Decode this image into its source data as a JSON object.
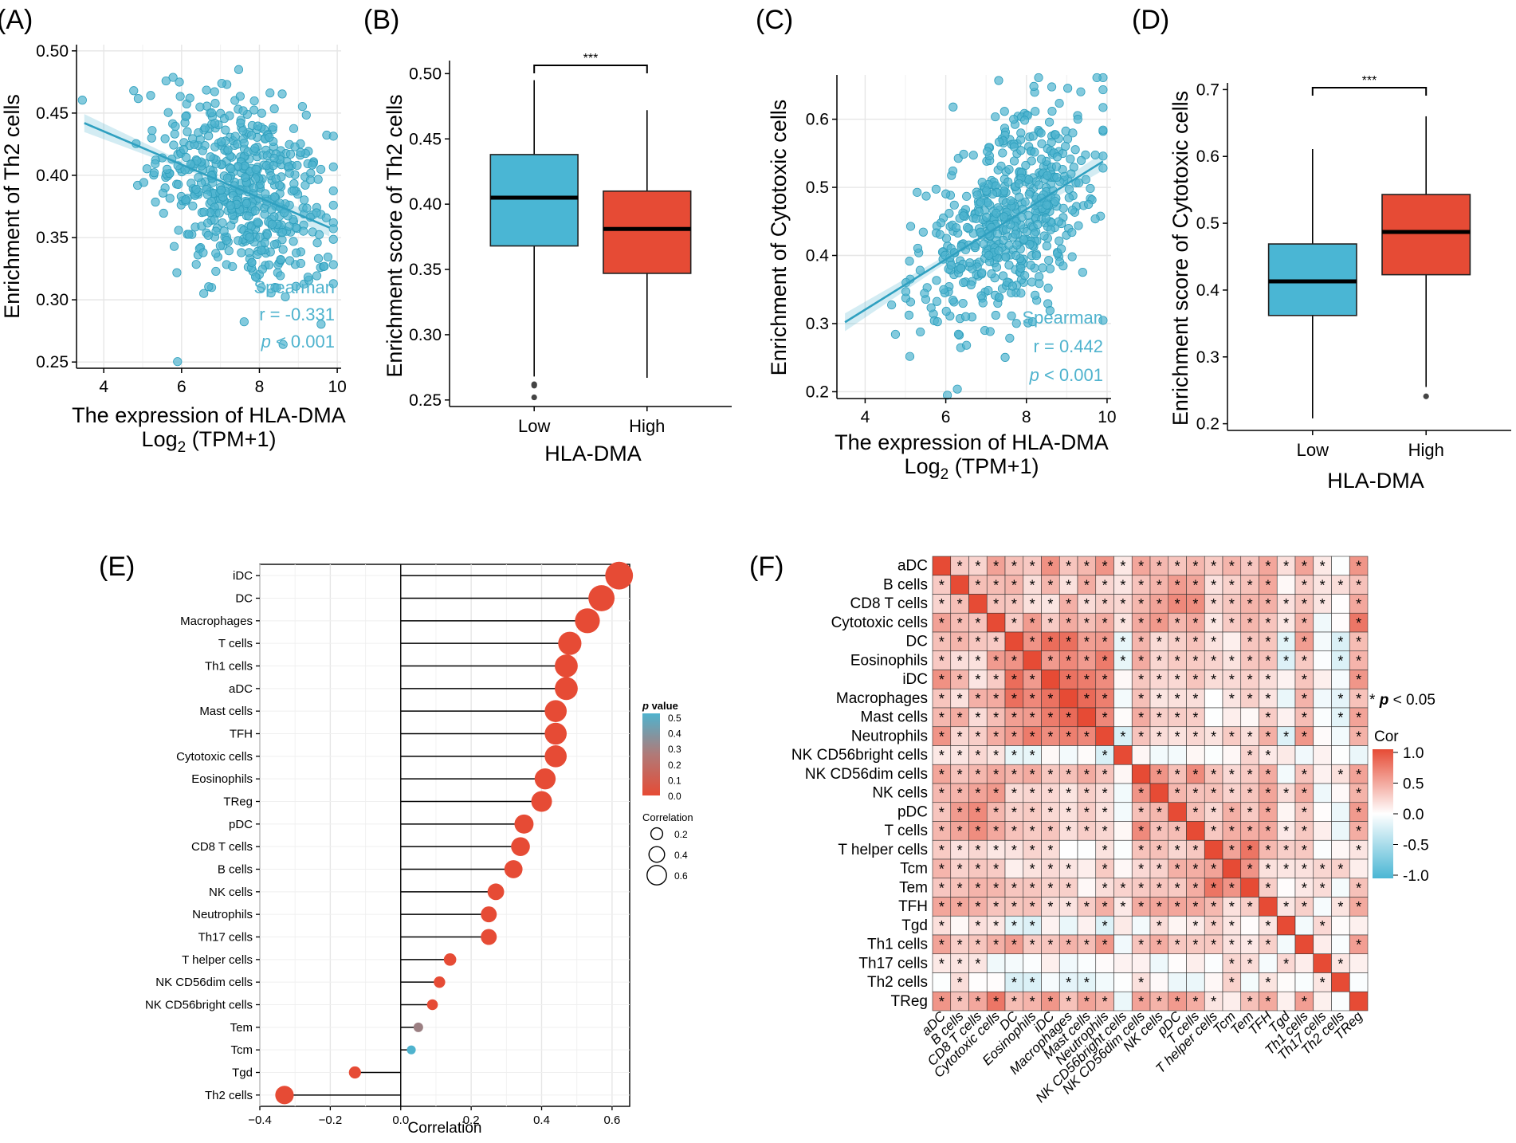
{
  "colors": {
    "teal": "#4fb3ce",
    "red": "#e64b35",
    "box_low": "#4ab6d4",
    "box_high": "#e64b35",
    "grid": "#e6e6e6",
    "label": "#000000"
  },
  "panel_labels": {
    "a": "(A)",
    "b": "(B)",
    "c": "(C)",
    "d": "(D)",
    "e": "(E)",
    "f": "(F)"
  },
  "chart_data": [
    {
      "id": "A",
      "type": "scatter",
      "title": "",
      "xlabel": "The expression of HLA-DMA",
      "xlabel2_base": "Log",
      "xlabel2_sub": "2",
      "xlabel2_rest": " (TPM+1)",
      "ylabel": "Enrichment of Th2 cells",
      "xlim": [
        3.3,
        10.1
      ],
      "ylim": [
        0.245,
        0.505
      ],
      "xticks": [
        4,
        6,
        8,
        10
      ],
      "yticks": [
        0.25,
        0.3,
        0.35,
        0.4,
        0.45,
        0.5
      ],
      "ytick_labels": [
        "0.25",
        "0.30",
        "0.35",
        "0.40",
        "0.45",
        "0.50"
      ],
      "fit": {
        "x0": 3.5,
        "y0": 0.442,
        "x1": 9.8,
        "y1": 0.358
      },
      "n_points": 560,
      "cloud": {
        "x_mean": 7.6,
        "x_sd": 1.1,
        "slope": -0.0134,
        "intercept": 0.4887,
        "noise_sd": 0.038
      },
      "annotation": {
        "method": "Spearman",
        "r": "r = -0.331",
        "p_italic": "p",
        "p_rest": " < 0.001"
      }
    },
    {
      "id": "B",
      "type": "box",
      "xlabel": "HLA-DMA",
      "ylabel": "Enrichment score of Th2 cells",
      "categories": [
        "Low",
        "High"
      ],
      "ylim": [
        0.245,
        0.51
      ],
      "yticks": [
        0.25,
        0.3,
        0.35,
        0.4,
        0.45,
        0.5
      ],
      "ytick_labels": [
        "0.25",
        "0.30",
        "0.35",
        "0.40",
        "0.45",
        "0.50"
      ],
      "boxes": [
        {
          "category": "Low",
          "min": 0.268,
          "q1": 0.368,
          "median": 0.405,
          "q3": 0.438,
          "max": 0.495,
          "outliers": [
            0.262,
            0.261,
            0.252
          ]
        },
        {
          "category": "High",
          "min": 0.267,
          "q1": 0.347,
          "median": 0.381,
          "q3": 0.41,
          "max": 0.472,
          "outliers": []
        }
      ],
      "significance": "***"
    },
    {
      "id": "C",
      "type": "scatter",
      "xlabel": "The expression of HLA-DMA",
      "xlabel2_base": "Log",
      "xlabel2_sub": "2",
      "xlabel2_rest": " (TPM+1)",
      "ylabel": "Enrichment of Cytotoxic cells",
      "xlim": [
        3.3,
        10.1
      ],
      "ylim": [
        0.19,
        0.665
      ],
      "xticks": [
        4,
        6,
        8,
        10
      ],
      "yticks": [
        0.2,
        0.3,
        0.4,
        0.5,
        0.6
      ],
      "ytick_labels": [
        "0.2",
        "0.3",
        "0.4",
        "0.5",
        "0.6"
      ],
      "fit": {
        "x0": 3.5,
        "y0": 0.302,
        "x1": 9.9,
        "y1": 0.538
      },
      "n_points": 560,
      "cloud": {
        "x_mean": 7.6,
        "x_sd": 1.1,
        "slope": 0.0369,
        "intercept": 0.1729,
        "noise_sd": 0.07
      },
      "annotation": {
        "method": "Spearman",
        "r": "r = 0.442",
        "p_italic": "p",
        "p_rest": " < 0.001"
      }
    },
    {
      "id": "D",
      "type": "box",
      "xlabel": "HLA-DMA",
      "ylabel": "Enrichment score of Cytotoxic cells",
      "categories": [
        "Low",
        "High"
      ],
      "ylim": [
        0.19,
        0.71
      ],
      "yticks": [
        0.2,
        0.3,
        0.4,
        0.5,
        0.6,
        0.7
      ],
      "ytick_labels": [
        "0.2",
        "0.3",
        "0.4",
        "0.5",
        "0.6",
        "0.7"
      ],
      "boxes": [
        {
          "category": "Low",
          "min": 0.208,
          "q1": 0.362,
          "median": 0.413,
          "q3": 0.469,
          "max": 0.611,
          "outliers": []
        },
        {
          "category": "High",
          "min": 0.255,
          "q1": 0.423,
          "median": 0.487,
          "q3": 0.543,
          "max": 0.66,
          "outliers": [
            0.241
          ]
        }
      ],
      "significance": "***"
    },
    {
      "id": "E",
      "type": "lollipop",
      "xlabel": "Correlation",
      "xlim": [
        -0.4,
        0.65
      ],
      "xticks": [
        -0.4,
        -0.2,
        0.0,
        0.2,
        0.4,
        0.6
      ],
      "xtick_labels": [
        "−0.4",
        "−0.2",
        "0.0",
        "0.2",
        "0.4",
        "0.6"
      ],
      "categories": [
        "iDC",
        "DC",
        "Macrophages",
        "T cells",
        "Th1 cells",
        "aDC",
        "Mast cells",
        "TFH",
        "Cytotoxic cells",
        "Eosinophils",
        "TReg",
        "pDC",
        "CD8 T cells",
        "B cells",
        "NK cells",
        "Neutrophils",
        "Th17 cells",
        "T helper cells",
        "NK CD56dim cells",
        "NK CD56bright cells",
        "Tem",
        "Tcm",
        "Tgd",
        "Th2 cells"
      ],
      "correlation": [
        0.62,
        0.57,
        0.53,
        0.48,
        0.47,
        0.47,
        0.44,
        0.44,
        0.44,
        0.41,
        0.4,
        0.35,
        0.34,
        0.32,
        0.27,
        0.25,
        0.25,
        0.14,
        0.11,
        0.09,
        0.05,
        0.03,
        -0.13,
        -0.33
      ],
      "p_value": [
        0,
        0,
        0,
        0,
        0,
        0,
        0,
        0,
        0,
        0,
        0,
        0,
        0,
        0,
        0,
        0,
        0,
        0,
        0,
        0,
        0.25,
        0.5,
        0,
        0
      ],
      "legend_p": {
        "title_italic": "p",
        "title_rest": " value",
        "ticks": [
          "0.5",
          "0.4",
          "0.3",
          "0.2",
          "0.1",
          "0.0"
        ]
      },
      "legend_size": {
        "title": "Correlation",
        "ticks": [
          "0.2",
          "0.4",
          "0.6"
        ],
        "values": [
          0.2,
          0.4,
          0.6
        ]
      }
    },
    {
      "id": "F",
      "type": "heatmap",
      "labels": [
        "aDC",
        "B cells",
        "CD8 T cells",
        "Cytotoxic cells",
        "DC",
        "Eosinophils",
        "iDC",
        "Macrophages",
        "Mast cells",
        "Neutrophils",
        "NK CD56bright cells",
        "NK CD56dim cells",
        "NK cells",
        "pDC",
        "T cells",
        "T helper cells",
        "Tcm",
        "Tem",
        "TFH",
        "Tgd",
        "Th1 cells",
        "Th17 cells",
        "Th2 cells",
        "TReg"
      ],
      "significance_note": "* p < 0.05",
      "note_star": "*",
      "note_p": "p",
      "note_rest": " < 0.05",
      "legend": {
        "title": "Cor",
        "ticks": [
          "1.0",
          "0.5",
          "0.0",
          "-0.5",
          "-1.0"
        ],
        "values": [
          1.0,
          0.5,
          0.0,
          -0.5,
          -1.0
        ]
      },
      "groups": {
        "G0": [
          "aDC",
          "Cytotoxic cells",
          "Th1 cells",
          "TReg"
        ],
        "G1": [
          "DC",
          "iDC",
          "Macrophages",
          "Eosinophils",
          "Mast cells",
          "Neutrophils"
        ],
        "G2": [
          "B cells",
          "T cells",
          "TFH",
          "CD8 T cells",
          "pDC",
          "NK cells",
          "NK CD56dim cells"
        ],
        "G3": [
          "Tcm",
          "Tem",
          "T helper cells"
        ],
        "G4": [
          "NK CD56bright cells",
          "Tgd",
          "Th17 cells",
          "Th2 cells"
        ]
      },
      "group_correlation": [
        [
          0.6,
          0.45,
          0.4,
          0.25,
          0.05
        ],
        [
          0.45,
          0.7,
          0.3,
          0.15,
          -0.05
        ],
        [
          0.4,
          0.3,
          0.5,
          0.3,
          0.05
        ],
        [
          0.25,
          0.15,
          0.3,
          0.6,
          0.1
        ],
        [
          0.05,
          -0.05,
          0.05,
          0.1,
          0.12
        ]
      ],
      "star_threshold": 0.12
    }
  ]
}
